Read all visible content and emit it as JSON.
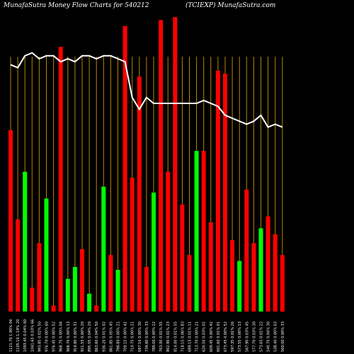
{
  "header": {
    "left": "MunafaSutra  Money Flow  Charts for 540212",
    "mid": "(TCIEXP) MunafaSutra.com"
  },
  "colors": {
    "up": "#00ff00",
    "down": "#ff0000",
    "grid": "#b8860b",
    "line": "#ffffff",
    "background": "#000000"
  },
  "chart_data": {
    "type": "bar",
    "ylim": [
      0,
      100
    ],
    "bar_baseline": 0,
    "categories": [
      "1121.70 1.90% 04",
      "1105.10 1.19% 20",
      "1093.45 0.04% 60",
      "1041.65 0.03% 66",
      "993.85 0.02% 50",
      "976.70 0.00% 60",
      "976.45 0.00% 52",
      "968.75 0.00% 04",
      "968.70 0.00% 13",
      "919.80 0.00% 31",
      "921.55 0.00% 20",
      "895.55 0.04% 20",
      "863.60 0.04% 50",
      "936.20 0.01% 02",
      "861.85 0.05% 45",
      "798.80 0.00% 21",
      "709.15 0.00% 42",
      "710.75 0.00% 21",
      "697.10 0.00% 30",
      "739.80 0.00% 33",
      "789.00 0.00% 12",
      "763.00 0.01% 55",
      "802.90 0.01% 23",
      "814.00 0.01% 55",
      "718.15 0.06% 83",
      "689.15 0.01% 11",
      "713.70 0.00% 21",
      "620.50 0.03% 02",
      "609.45 0.00% 42",
      "601.60 0.01% 01",
      "673.45 0.00% 52",
      "597.35 0.01% 26",
      "573.55 0.00% 13",
      "567.90 0.03% 45",
      "577.70 0.03% 30",
      "573.65 0.01% 22",
      "540.70 0.04% 30",
      "538.40 0.00% 03",
      "560.00 0.00% 33"
    ],
    "series": [
      {
        "colors": [
          "red",
          "red",
          "green",
          "red",
          "red",
          "green",
          "red",
          "red",
          "green",
          "green",
          "red",
          "green",
          "red",
          "green",
          "red",
          "green",
          "red",
          "red",
          "red",
          "red",
          "green",
          "red",
          "red",
          "red",
          "red",
          "red",
          "green",
          "red",
          "red",
          "red",
          "red",
          "red",
          "green",
          "red",
          "red",
          "green",
          "red",
          "red",
          "red"
        ],
        "values": [
          61,
          31,
          47,
          8,
          23,
          38,
          2,
          89,
          11,
          15,
          21,
          6,
          2,
          42,
          19,
          14,
          96,
          45,
          79,
          15,
          40,
          98,
          47,
          99,
          36,
          19,
          54,
          54,
          30,
          81,
          80,
          24,
          17,
          41,
          23,
          28,
          32,
          26,
          19
        ]
      },
      {
        "type": "line",
        "values": [
          83,
          82,
          86,
          87,
          85,
          86,
          86,
          84,
          85,
          84,
          86,
          86,
          85,
          86,
          86,
          85,
          84,
          72,
          68,
          72,
          70,
          70,
          70,
          70,
          70,
          70,
          70,
          71,
          70,
          69,
          66,
          65,
          64,
          63,
          64,
          66,
          62,
          63,
          62
        ]
      }
    ]
  }
}
